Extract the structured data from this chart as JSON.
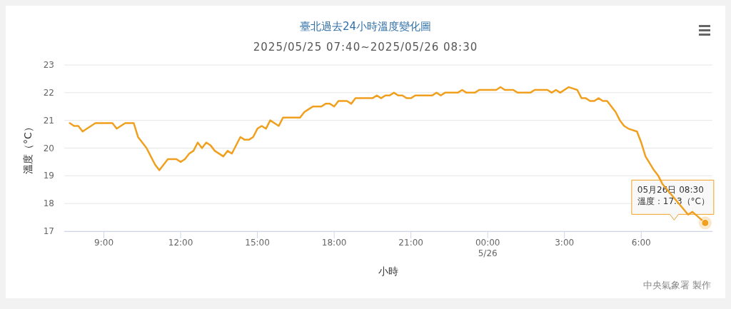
{
  "chart_data": {
    "type": "line",
    "title": "臺北過去24小時溫度變化圖",
    "subtitle": "2025/05/25 07:40~2025/05/26 08:30",
    "xlabel": "小時",
    "ylabel": "溫度（°C）",
    "x": [
      "2025-05-25T07:40",
      "2025-05-25T07:50",
      "2025-05-25T08:00",
      "2025-05-25T08:10",
      "2025-05-25T08:40",
      "2025-05-25T09:20",
      "2025-05-25T09:30",
      "2025-05-25T09:50",
      "2025-05-25T10:10",
      "2025-05-25T10:20",
      "2025-05-25T10:40",
      "2025-05-25T10:50",
      "2025-05-25T11:00",
      "2025-05-25T11:10",
      "2025-05-25T11:30",
      "2025-05-25T11:50",
      "2025-05-25T12:00",
      "2025-05-25T12:10",
      "2025-05-25T12:20",
      "2025-05-25T12:30",
      "2025-05-25T12:40",
      "2025-05-25T12:50",
      "2025-05-25T13:00",
      "2025-05-25T13:10",
      "2025-05-25T13:20",
      "2025-05-25T13:40",
      "2025-05-25T13:50",
      "2025-05-25T14:00",
      "2025-05-25T14:20",
      "2025-05-25T14:30",
      "2025-05-25T14:40",
      "2025-05-25T14:50",
      "2025-05-25T15:00",
      "2025-05-25T15:10",
      "2025-05-25T15:20",
      "2025-05-25T15:30",
      "2025-05-25T15:50",
      "2025-05-25T16:00",
      "2025-05-25T16:40",
      "2025-05-25T16:50",
      "2025-05-25T17:00",
      "2025-05-25T17:10",
      "2025-05-25T17:30",
      "2025-05-25T17:40",
      "2025-05-25T17:50",
      "2025-05-25T18:00",
      "2025-05-25T18:10",
      "2025-05-25T18:30",
      "2025-05-25T18:40",
      "2025-05-25T18:50",
      "2025-05-25T19:30",
      "2025-05-25T19:40",
      "2025-05-25T19:50",
      "2025-05-25T20:00",
      "2025-05-25T20:10",
      "2025-05-25T20:20",
      "2025-05-25T20:30",
      "2025-05-25T20:40",
      "2025-05-25T20:50",
      "2025-05-25T21:00",
      "2025-05-25T21:10",
      "2025-05-25T21:50",
      "2025-05-25T22:00",
      "2025-05-25T22:10",
      "2025-05-25T22:20",
      "2025-05-25T22:50",
      "2025-05-25T23:00",
      "2025-05-25T23:10",
      "2025-05-25T23:30",
      "2025-05-25T23:40",
      "2025-05-26T00:20",
      "2025-05-26T00:30",
      "2025-05-26T00:40",
      "2025-05-26T01:00",
      "2025-05-26T01:10",
      "2025-05-26T01:40",
      "2025-05-26T01:50",
      "2025-05-26T02:20",
      "2025-05-26T02:30",
      "2025-05-26T02:40",
      "2025-05-26T02:50",
      "2025-05-26T03:10",
      "2025-05-26T03:30",
      "2025-05-26T03:40",
      "2025-05-26T03:50",
      "2025-05-26T04:00",
      "2025-05-26T04:10",
      "2025-05-26T04:20",
      "2025-05-26T04:30",
      "2025-05-26T04:40",
      "2025-05-26T05:00",
      "2025-05-26T05:10",
      "2025-05-26T05:20",
      "2025-05-26T05:30",
      "2025-05-26T05:50",
      "2025-05-26T06:00",
      "2025-05-26T06:10",
      "2025-05-26T06:30",
      "2025-05-26T06:40",
      "2025-05-26T06:50",
      "2025-05-26T07:50",
      "2025-05-26T08:00",
      "2025-05-26T08:30"
    ],
    "series": [
      {
        "color": "#f0a01e",
        "values": [
          20.9,
          20.8,
          20.8,
          20.6,
          20.9,
          20.9,
          20.7,
          20.9,
          20.9,
          20.4,
          20.0,
          19.7,
          19.4,
          19.2,
          19.6,
          19.6,
          19.5,
          19.6,
          19.8,
          19.9,
          20.2,
          20.0,
          20.2,
          20.1,
          19.9,
          19.7,
          19.9,
          19.8,
          20.4,
          20.3,
          20.3,
          20.4,
          20.7,
          20.8,
          20.7,
          21.0,
          20.8,
          21.1,
          21.1,
          21.3,
          21.4,
          21.5,
          21.5,
          21.6,
          21.6,
          21.5,
          21.7,
          21.7,
          21.6,
          21.8,
          21.8,
          21.9,
          21.8,
          21.9,
          21.9,
          22.0,
          21.9,
          21.9,
          21.8,
          21.8,
          21.9,
          21.9,
          22.0,
          21.9,
          22.0,
          22.0,
          22.1,
          22.0,
          22.0,
          22.1,
          22.1,
          22.2,
          22.1,
          22.1,
          22.0,
          22.0,
          22.1,
          22.1,
          22.0,
          22.1,
          22.0,
          22.2,
          22.1,
          21.8,
          21.8,
          21.7,
          21.7,
          21.8,
          21.7,
          21.7,
          21.3,
          21.0,
          20.8,
          20.7,
          20.6,
          20.2,
          19.7,
          19.2,
          19.0,
          18.7,
          17.6,
          17.7,
          17.3
        ]
      }
    ],
    "xlim": [
      "2025-05-25T07:27",
      "2025-05-26T08:47"
    ],
    "xticks": [
      {
        "value": "2025-05-25T09:00",
        "label": "9:00"
      },
      {
        "value": "2025-05-25T12:00",
        "label": "12:00"
      },
      {
        "value": "2025-05-25T15:00",
        "label": "15:00"
      },
      {
        "value": "2025-05-25T18:00",
        "label": "18:00"
      },
      {
        "value": "2025-05-25T21:00",
        "label": "21:00"
      },
      {
        "value": "2025-05-26T00:00",
        "label": "00:00\n5/26"
      },
      {
        "value": "2025-05-26T03:00",
        "label": "3:00"
      },
      {
        "value": "2025-05-26T06:00",
        "label": "6:00"
      }
    ],
    "ylim": [
      17,
      23
    ],
    "yticks": [
      17,
      18,
      19,
      20,
      21,
      22,
      23
    ],
    "grid": "y",
    "marker": "none",
    "line_style": "solid",
    "annotations": [
      {
        "text": "05月26日 08:30\n溫度：17.3（°C）",
        "x": "2025-05-26T08:30",
        "y": 17.3
      },
      "中央氣象署 製作"
    ]
  }
}
